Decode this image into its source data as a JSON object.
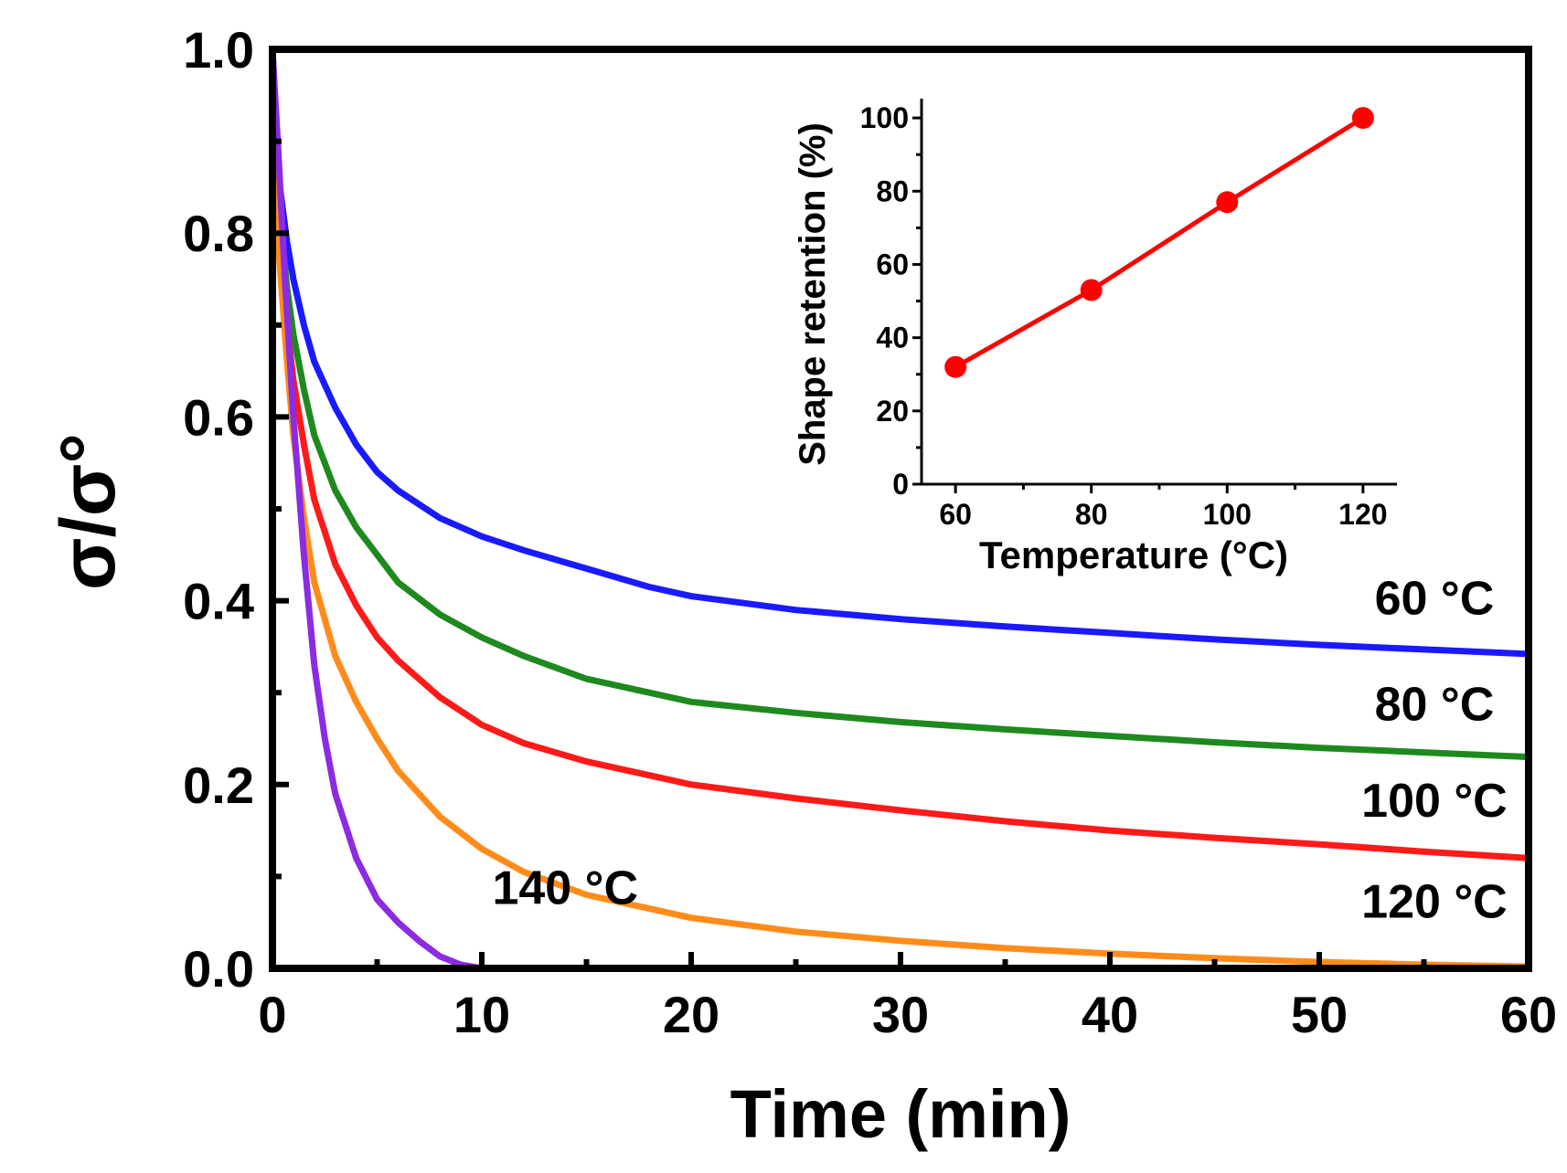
{
  "chart_data": [
    {
      "type": "line",
      "title": "",
      "xlabel": "Time (min)",
      "ylabel": "σ/σ°",
      "xlim": [
        0,
        60
      ],
      "ylim": [
        0.0,
        1.0
      ],
      "x_ticks": [
        0,
        10,
        20,
        30,
        40,
        50,
        60
      ],
      "y_ticks": [
        0.0,
        0.2,
        0.4,
        0.6,
        0.8,
        1.0
      ],
      "x_tick_labels": [
        "0",
        "10",
        "20",
        "30",
        "40",
        "50",
        "60"
      ],
      "y_tick_labels": [
        "0.0",
        "0.2",
        "0.4",
        "0.6",
        "0.8",
        "1.0"
      ],
      "grid": false,
      "series": [
        {
          "name": "60 °C",
          "color": "#1a1aff",
          "x": [
            0,
            0.3,
            0.7,
            1,
            1.5,
            2,
            3,
            4,
            5,
            6,
            8,
            10,
            12,
            15,
            18,
            20,
            25,
            30,
            35,
            40,
            45,
            50,
            55,
            60
          ],
          "y": [
            1.0,
            0.86,
            0.79,
            0.75,
            0.7,
            0.66,
            0.61,
            0.57,
            0.54,
            0.52,
            0.49,
            0.47,
            0.455,
            0.435,
            0.415,
            0.405,
            0.39,
            0.38,
            0.372,
            0.365,
            0.358,
            0.352,
            0.347,
            0.342
          ]
        },
        {
          "name": "80 °C",
          "color": "#1e8a1e",
          "x": [
            0,
            0.3,
            0.7,
            1,
            1.5,
            2,
            3,
            4,
            5,
            6,
            8,
            10,
            12,
            15,
            18,
            20,
            25,
            30,
            35,
            40,
            45,
            50,
            55,
            60
          ],
          "y": [
            1.0,
            0.83,
            0.74,
            0.69,
            0.63,
            0.58,
            0.52,
            0.48,
            0.45,
            0.42,
            0.385,
            0.36,
            0.34,
            0.315,
            0.3,
            0.29,
            0.278,
            0.268,
            0.26,
            0.253,
            0.246,
            0.24,
            0.235,
            0.23
          ]
        },
        {
          "name": "100 °C",
          "color": "#ff1a1a",
          "x": [
            0,
            0.3,
            0.7,
            1,
            1.5,
            2,
            3,
            4,
            5,
            6,
            8,
            10,
            12,
            15,
            18,
            20,
            25,
            30,
            35,
            40,
            45,
            50,
            55,
            60
          ],
          "y": [
            1.0,
            0.8,
            0.7,
            0.64,
            0.57,
            0.51,
            0.44,
            0.395,
            0.36,
            0.335,
            0.295,
            0.265,
            0.245,
            0.225,
            0.21,
            0.2,
            0.185,
            0.172,
            0.16,
            0.15,
            0.142,
            0.135,
            0.127,
            0.12
          ]
        },
        {
          "name": "120 °C",
          "color": "#ff8c1a",
          "x": [
            0,
            0.3,
            0.7,
            1,
            1.5,
            2,
            3,
            4,
            5,
            6,
            8,
            10,
            12,
            15,
            18,
            20,
            25,
            30,
            35,
            40,
            45,
            50,
            55,
            60
          ],
          "y": [
            1.0,
            0.78,
            0.66,
            0.58,
            0.49,
            0.42,
            0.34,
            0.29,
            0.25,
            0.215,
            0.165,
            0.13,
            0.105,
            0.08,
            0.065,
            0.055,
            0.04,
            0.03,
            0.022,
            0.016,
            0.011,
            0.007,
            0.004,
            0.002
          ]
        },
        {
          "name": "140 °C",
          "color": "#8b2be2",
          "x": [
            0,
            0.3,
            0.6,
            1,
            1.5,
            2,
            2.5,
            3,
            4,
            5,
            6,
            7,
            8,
            9,
            10
          ],
          "y": [
            1.0,
            0.88,
            0.75,
            0.6,
            0.45,
            0.33,
            0.25,
            0.19,
            0.12,
            0.075,
            0.05,
            0.03,
            0.013,
            0.004,
            0.0
          ]
        }
      ],
      "series_labels": [
        {
          "text": "60 °C",
          "x": 55.5,
          "y": 0.385
        },
        {
          "text": "80 °C",
          "x": 55.5,
          "y": 0.27
        },
        {
          "text": "100 °C",
          "x": 55.5,
          "y": 0.165
        },
        {
          "text": "120 °C",
          "x": 55.5,
          "y": 0.055
        },
        {
          "text": "140 °C",
          "x": 10.5,
          "y": 0.07
        }
      ]
    },
    {
      "type": "line",
      "title": "",
      "xlabel": "Temperature (°C)",
      "ylabel": "Shape retention (%)",
      "xlim": [
        55,
        125
      ],
      "ylim": [
        0,
        100
      ],
      "x_ticks": [
        60,
        80,
        100,
        120
      ],
      "y_ticks": [
        0,
        20,
        40,
        60,
        80,
        100
      ],
      "x_tick_labels": [
        "60",
        "80",
        "100",
        "120"
      ],
      "y_tick_labels": [
        "0",
        "20",
        "40",
        "60",
        "80",
        "100"
      ],
      "grid": false,
      "legend_placement": "none",
      "series": [
        {
          "name": "Shape retention",
          "color": "#ff0000",
          "x": [
            60,
            80,
            100,
            120
          ],
          "y": [
            32,
            53,
            77,
            100
          ]
        }
      ]
    }
  ]
}
